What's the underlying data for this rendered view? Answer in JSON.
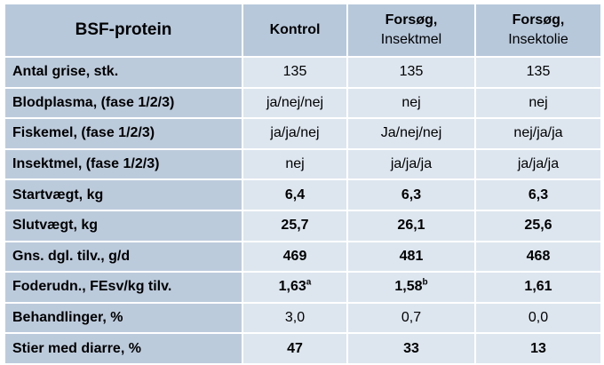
{
  "table": {
    "header": {
      "title": "BSF-protein",
      "columns": [
        {
          "line1": "Kontrol",
          "line2": ""
        },
        {
          "line1": "Forsøg,",
          "line2": "Insektmel"
        },
        {
          "line1": "Forsøg,",
          "line2": "Insektolie"
        }
      ]
    },
    "rows": [
      {
        "label": "Antal grise, stk.",
        "values": [
          "135",
          "135",
          "135"
        ],
        "sup": [
          "",
          "",
          ""
        ],
        "bold": false
      },
      {
        "label": "Blodplasma, (fase 1/2/3)",
        "values": [
          "ja/nej/nej",
          "nej",
          "nej"
        ],
        "sup": [
          "",
          "",
          ""
        ],
        "bold": false
      },
      {
        "label": "Fiskemel, (fase 1/2/3)",
        "values": [
          "ja/ja/nej",
          "Ja/nej/nej",
          "nej/ja/ja"
        ],
        "sup": [
          "",
          "",
          ""
        ],
        "bold": false
      },
      {
        "label": "Insektmel, (fase 1/2/3)",
        "values": [
          "nej",
          "ja/ja/ja",
          "ja/ja/ja"
        ],
        "sup": [
          "",
          "",
          ""
        ],
        "bold": false
      },
      {
        "label": "Startvægt, kg",
        "values": [
          "6,4",
          "6,3",
          "6,3"
        ],
        "sup": [
          "",
          "",
          ""
        ],
        "bold": true
      },
      {
        "label": "Slutvægt, kg",
        "values": [
          "25,7",
          "26,1",
          "25,6"
        ],
        "sup": [
          "",
          "",
          ""
        ],
        "bold": true
      },
      {
        "label": "Gns. dgl. tilv., g/d",
        "values": [
          "469",
          "481",
          "468"
        ],
        "sup": [
          "",
          "",
          ""
        ],
        "bold": true
      },
      {
        "label": "Foderudn., FEsv/kg tilv.",
        "values": [
          "1,63",
          "1,58",
          "1,61"
        ],
        "sup": [
          "a",
          "b",
          ""
        ],
        "bold": true
      },
      {
        "label": "Behandlinger, %",
        "values": [
          "3,0",
          "0,7",
          "0,0"
        ],
        "sup": [
          "",
          "",
          ""
        ],
        "bold": false
      },
      {
        "label": "Stier med diarre, %",
        "values": [
          "47",
          "33",
          "13"
        ],
        "sup": [
          "",
          "",
          ""
        ],
        "bold": true
      }
    ]
  }
}
